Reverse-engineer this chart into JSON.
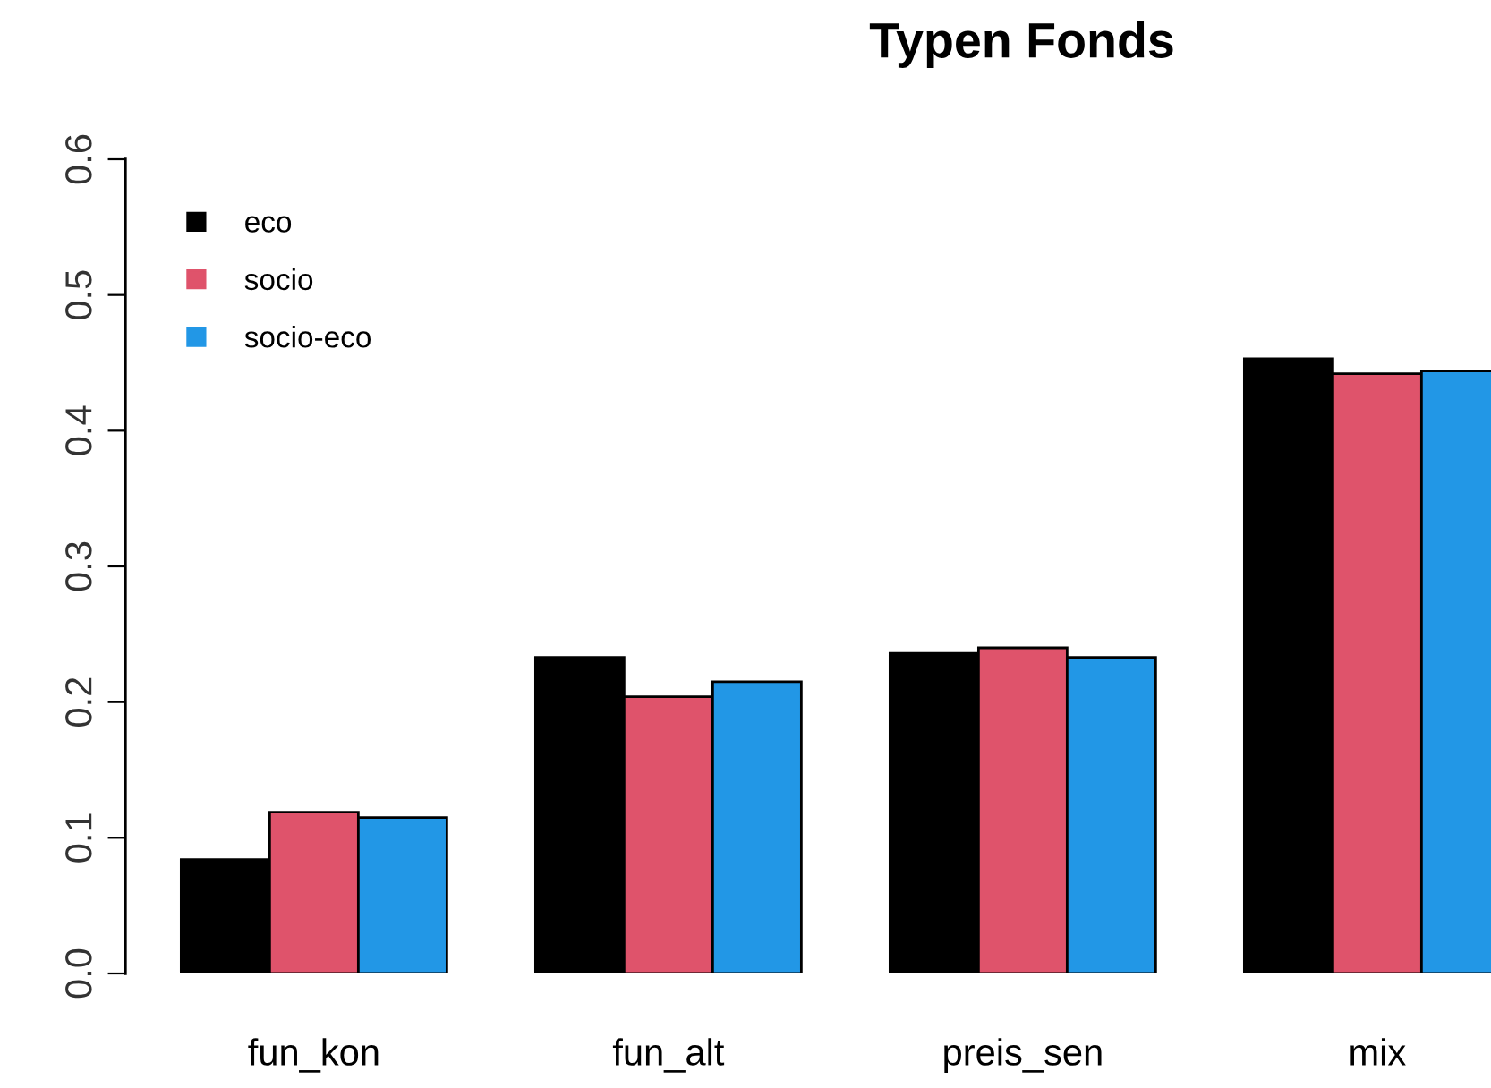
{
  "chart_data": {
    "type": "bar",
    "title": "Typen Fonds",
    "categories": [
      "fun_kon",
      "fun_alt",
      "preis_sen",
      "mix"
    ],
    "series": [
      {
        "name": "eco",
        "color": "#000000",
        "values": [
          0.084,
          0.233,
          0.236,
          0.453
        ]
      },
      {
        "name": "socio",
        "color": "#df536b",
        "values": [
          0.119,
          0.204,
          0.24,
          0.442
        ]
      },
      {
        "name": "socio-eco",
        "color": "#2297e6",
        "values": [
          0.115,
          0.215,
          0.233,
          0.444
        ]
      }
    ],
    "ylim": [
      0,
      0.6
    ],
    "yticks": [
      {
        "value": 0,
        "label": "0.0"
      },
      0.1,
      0.2,
      0.3,
      0.4,
      0.5,
      0.6
    ],
    "grid": false,
    "legend": "top left"
  }
}
